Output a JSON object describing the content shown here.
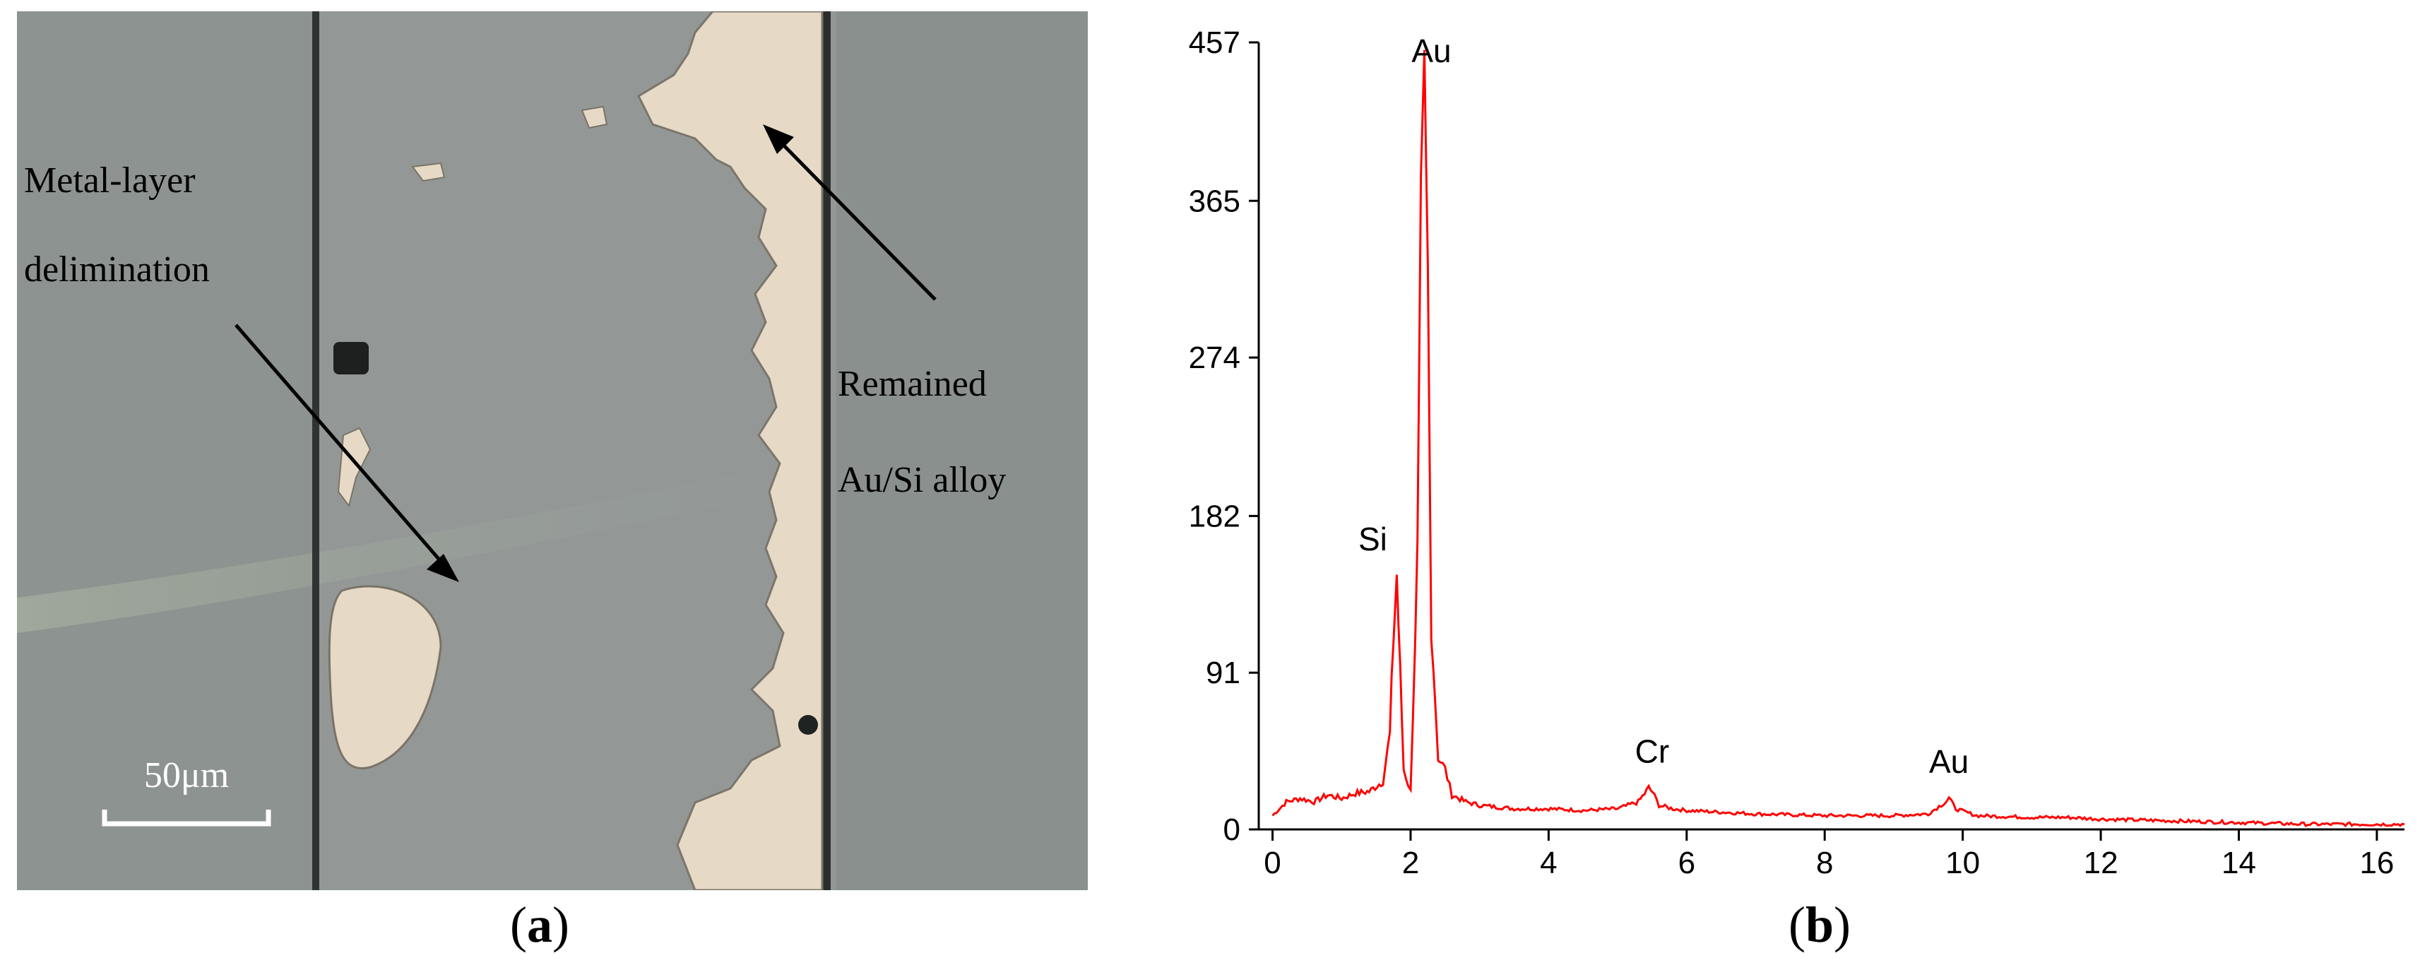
{
  "panel_a": {
    "image_kind": "optical micrograph of metal-layer delimination",
    "annotation_left_line1": "Metal-layer",
    "annotation_left_line2": "delimination",
    "annotation_right_line1": "Remained",
    "annotation_right_line2": "Au/Si alloy",
    "scale_bar_label": "50μm",
    "caption_letter": "a"
  },
  "panel_b": {
    "caption_letter": "b"
  },
  "colors": {
    "spectrum_line": "#ff0000",
    "micrograph_background": "#8c9290",
    "alloy_patch": "#e6d9c6"
  },
  "chart_data": {
    "type": "line",
    "title": "",
    "xlabel": "",
    "ylabel": "",
    "xlim": [
      -0.2,
      16.4
    ],
    "ylim": [
      0,
      457
    ],
    "x_ticks": [
      0,
      2,
      4,
      6,
      8,
      10,
      12,
      14,
      16
    ],
    "y_ticks": [
      0,
      91,
      182,
      274,
      365,
      457
    ],
    "grid": false,
    "legend": "none",
    "series": [
      {
        "x": [
          0.0,
          0.2,
          0.4,
          0.6,
          0.8,
          1.0,
          1.2,
          1.4,
          1.6,
          1.7,
          1.75,
          1.8,
          1.85,
          1.9,
          2.0,
          2.1,
          2.15,
          2.2,
          2.25,
          2.3,
          2.4,
          2.5,
          2.6,
          2.8,
          3.0,
          3.5,
          4.0,
          4.5,
          5.0,
          5.3,
          5.45,
          5.5,
          5.6,
          5.8,
          6.0,
          6.5,
          7.0,
          8.0,
          9.0,
          9.5,
          9.75,
          9.8,
          9.9,
          10.2,
          11.0,
          11.5,
          12.0,
          13.0,
          14.0,
          15.0,
          16.0,
          16.4
        ],
        "y": [
          8,
          16,
          18,
          16,
          20,
          18,
          21,
          22,
          28,
          55,
          110,
          148,
          90,
          35,
          22,
          160,
          350,
          425,
          320,
          120,
          42,
          35,
          20,
          16,
          14,
          12,
          12,
          11,
          12,
          16,
          24,
          22,
          14,
          12,
          11,
          10,
          9,
          8,
          8,
          9,
          16,
          18,
          12,
          8,
          7,
          7,
          6,
          5,
          4,
          3,
          3,
          3
        ]
      }
    ],
    "annotations": [
      {
        "text": "Au",
        "x": 2.2,
        "y": 425
      },
      {
        "text": "Si",
        "x": 1.78,
        "y": 148
      },
      {
        "text": "Cr",
        "x": 5.5,
        "y": 24
      },
      {
        "text": "Au",
        "x": 9.8,
        "y": 18
      }
    ]
  }
}
